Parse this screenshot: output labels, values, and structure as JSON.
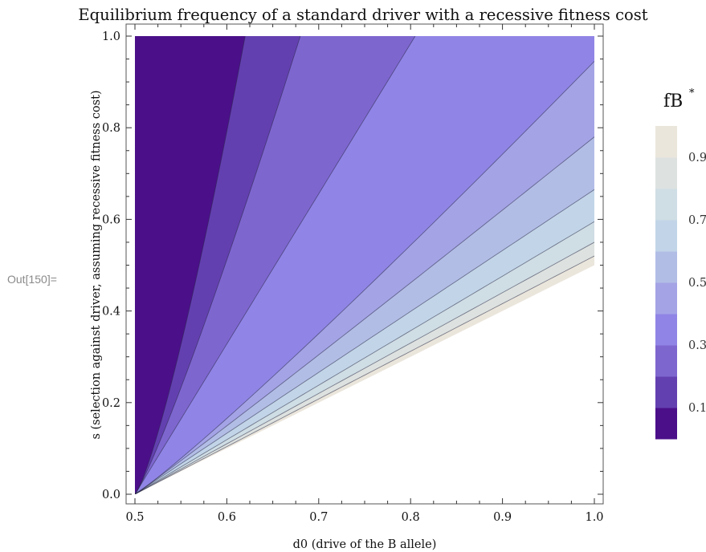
{
  "notebook": {
    "output_label": "Out[150]="
  },
  "chart_data": {
    "type": "contour",
    "title": "Equilibrium frequency of a standard driver with a recessive fitness cost",
    "xlabel": "d0 (drive of the B allele)",
    "ylabel": "s (selection against driver, assuming recessive fitness cost)",
    "xlim": [
      0.5,
      1.0
    ],
    "ylim": [
      0.0,
      1.0
    ],
    "x_ticks": [
      "0.5",
      "0.6",
      "0.7",
      "0.8",
      "0.9",
      "1.0"
    ],
    "y_ticks": [
      "0.0",
      "0.2",
      "0.4",
      "0.6",
      "0.8",
      "1.0"
    ],
    "contour_levels": [
      0.1,
      0.2,
      0.3,
      0.4,
      0.5,
      0.6,
      0.7,
      0.8,
      0.9
    ],
    "legend": {
      "title": "fB",
      "title_superscript": "*",
      "placement": "right",
      "tick_labels": [
        "0.1",
        "0.3",
        "0.5",
        "0.7",
        "0.9"
      ],
      "bands": [
        {
          "from": 0.0,
          "to": 0.1,
          "color": "#4b0f8a"
        },
        {
          "from": 0.1,
          "to": 0.2,
          "color": "#6340b0"
        },
        {
          "from": 0.2,
          "to": 0.3,
          "color": "#7e66cf"
        },
        {
          "from": 0.3,
          "to": 0.4,
          "color": "#9085e6"
        },
        {
          "from": 0.4,
          "to": 0.5,
          "color": "#a4a3e6"
        },
        {
          "from": 0.5,
          "to": 0.6,
          "color": "#b2bde6"
        },
        {
          "from": 0.6,
          "to": 0.7,
          "color": "#c2d5e8"
        },
        {
          "from": 0.7,
          "to": 0.8,
          "color": "#cfdde4"
        },
        {
          "from": 0.8,
          "to": 0.9,
          "color": "#dde2e0"
        },
        {
          "from": 0.9,
          "to": 1.0,
          "color": "#ebe6dc"
        }
      ]
    },
    "grid": false
  }
}
